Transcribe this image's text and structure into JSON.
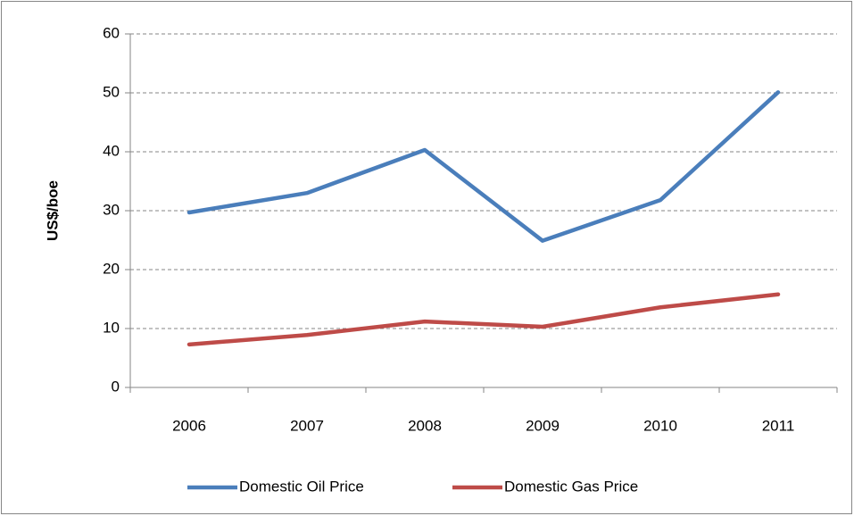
{
  "chart_data": {
    "type": "line",
    "y_label": "US$/boe",
    "categories": [
      "2006",
      "2007",
      "2008",
      "2009",
      "2010",
      "2011"
    ],
    "series": [
      {
        "name": "Domestic Oil Price",
        "color": "#4a7ebb",
        "values": [
          29.7,
          33,
          40.3,
          24.9,
          31.8,
          50.1
        ]
      },
      {
        "name": "Domestic Gas Price",
        "color": "#be4b48",
        "values": [
          7.3,
          8.9,
          11.2,
          10.3,
          13.6,
          15.8
        ]
      }
    ],
    "ylim": [
      0,
      60
    ],
    "yticks": [
      0,
      10,
      20,
      30,
      40,
      50,
      60
    ],
    "grid": true,
    "legend": "bottom"
  }
}
